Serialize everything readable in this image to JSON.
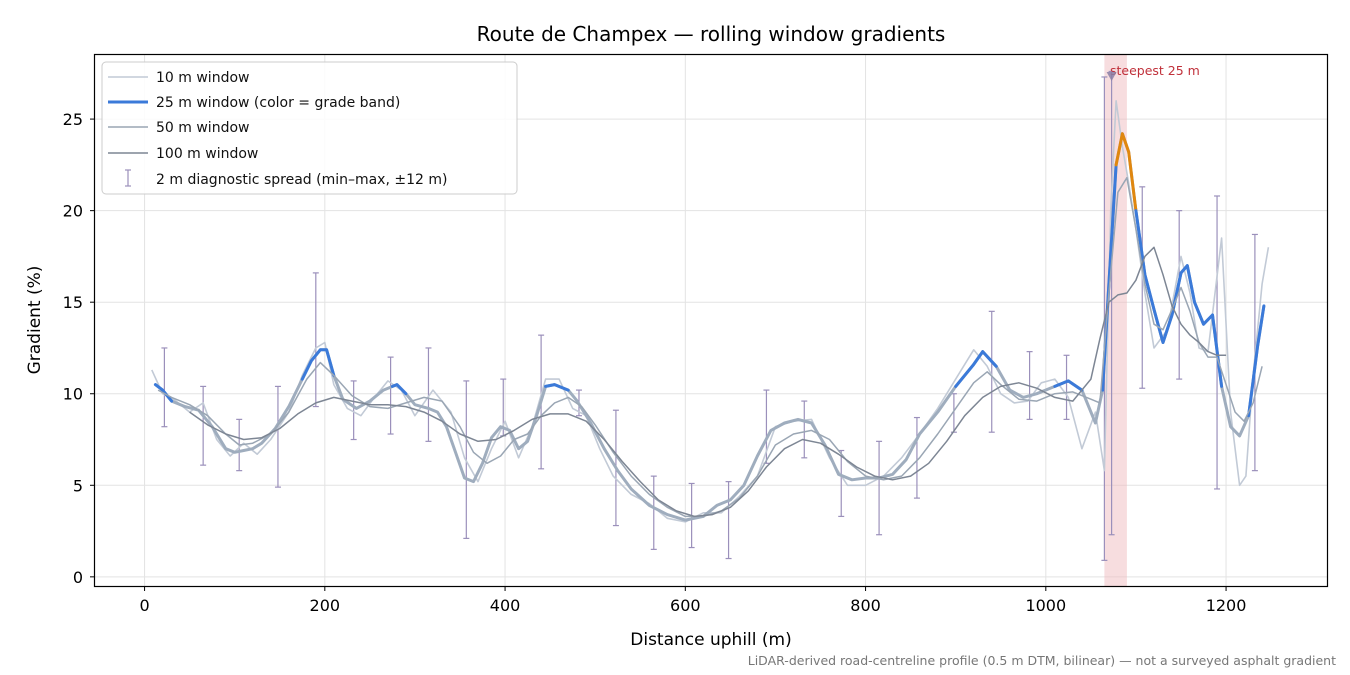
{
  "chart_data": {
    "type": "line",
    "title": "Route de Champex — rolling window gradients",
    "xlabel": "Distance uphill (m)",
    "ylabel": "Gradient (%)",
    "xlim": [
      -55,
      1312
    ],
    "ylim": [
      -0.5,
      28.5
    ],
    "xticks": [
      0,
      200,
      400,
      600,
      800,
      1000,
      1200
    ],
    "yticks": [
      0,
      5,
      10,
      15,
      20,
      25
    ],
    "grid": true,
    "legend_position": "top-left",
    "colors": {
      "w10": "#c2cad6",
      "w25_base": "#9fadbe",
      "w25_band_blue": "#3b7ad9",
      "w25_band_orange": "#e0870f",
      "w50": "#9aa6b4",
      "w100": "#7d8694",
      "errorbar": "#9b90bb",
      "highlight": "#f0bcc0",
      "annotation": "#c0303a",
      "marker": "#8a7fa6"
    },
    "legend": [
      {
        "label": "10 m window",
        "key": "w10"
      },
      {
        "label": "25 m window (color = grade band)",
        "key": "w25"
      },
      {
        "label": "50 m window",
        "key": "w50"
      },
      {
        "label": "100 m window",
        "key": "w100"
      },
      {
        "label": "2 m diagnostic spread (min–max, ±12 m)",
        "key": "spread"
      }
    ],
    "series": [
      {
        "name": "25 m window",
        "x": [
          12,
          20,
          30,
          45,
          60,
          75,
          90,
          100,
          110,
          120,
          130,
          145,
          160,
          175,
          185,
          195,
          202,
          210,
          220,
          235,
          250,
          265,
          280,
          290,
          300,
          315,
          325,
          335,
          345,
          355,
          365,
          375,
          385,
          395,
          405,
          415,
          425,
          435,
          445,
          455,
          470,
          480,
          495,
          510,
          525,
          540,
          560,
          580,
          600,
          620,
          635,
          650,
          665,
          680,
          695,
          710,
          725,
          740,
          755,
          770,
          785,
          800,
          815,
          830,
          845,
          860,
          880,
          900,
          920,
          930,
          945,
          960,
          975,
          990,
          1010,
          1025,
          1040,
          1055,
          1063,
          1070,
          1078,
          1085,
          1092,
          1100,
          1110,
          1120,
          1130,
          1140,
          1150,
          1157,
          1165,
          1175,
          1185,
          1195,
          1205,
          1215,
          1225,
          1235,
          1242
        ],
        "y": [
          10.5,
          10.2,
          9.6,
          9.3,
          9.1,
          8.2,
          7.0,
          6.8,
          6.9,
          7.0,
          7.3,
          8.1,
          9.3,
          10.8,
          11.8,
          12.4,
          12.4,
          11.0,
          9.7,
          9.2,
          9.6,
          10.2,
          10.5,
          10.0,
          9.4,
          9.2,
          9.0,
          8.2,
          6.8,
          5.4,
          5.2,
          6.2,
          7.6,
          8.2,
          8.0,
          7.0,
          7.4,
          8.8,
          10.4,
          10.5,
          10.2,
          9.6,
          8.4,
          7.0,
          5.8,
          4.8,
          3.9,
          3.4,
          3.1,
          3.3,
          3.9,
          4.2,
          5.0,
          6.6,
          8.0,
          8.4,
          8.6,
          8.4,
          7.2,
          5.6,
          5.3,
          5.4,
          5.4,
          5.6,
          6.4,
          7.8,
          9.0,
          10.4,
          11.6,
          12.3,
          11.5,
          10.2,
          9.8,
          10.0,
          10.4,
          10.7,
          10.2,
          8.4,
          10.2,
          16.0,
          22.5,
          24.2,
          23.2,
          20.0,
          16.5,
          14.6,
          12.8,
          14.3,
          16.6,
          17.0,
          15.0,
          13.8,
          14.3,
          10.4,
          8.2,
          7.7,
          8.8,
          12.6,
          14.8
        ]
      },
      {
        "name": "10 m window",
        "x": [
          8,
          20,
          35,
          50,
          65,
          80,
          95,
          110,
          125,
          140,
          160,
          175,
          190,
          200,
          210,
          225,
          240,
          255,
          270,
          285,
          300,
          320,
          340,
          355,
          370,
          385,
          400,
          415,
          430,
          445,
          460,
          475,
          490,
          505,
          520,
          540,
          560,
          580,
          600,
          620,
          640,
          660,
          680,
          700,
          720,
          740,
          760,
          780,
          800,
          820,
          840,
          860,
          880,
          900,
          920,
          935,
          950,
          965,
          980,
          995,
          1010,
          1025,
          1040,
          1055,
          1065,
          1072,
          1078,
          1085,
          1092,
          1100,
          1110,
          1120,
          1135,
          1150,
          1160,
          1170,
          1180,
          1195,
          1205,
          1215,
          1222,
          1230,
          1240,
          1247
        ],
        "y": [
          11.3,
          10.0,
          9.6,
          9.0,
          9.5,
          7.5,
          6.6,
          7.3,
          6.7,
          7.5,
          9.0,
          11.0,
          12.5,
          12.8,
          10.5,
          9.2,
          8.8,
          9.8,
          10.7,
          10.2,
          8.8,
          10.2,
          9.0,
          6.5,
          5.2,
          7.0,
          8.5,
          6.5,
          8.2,
          10.8,
          10.8,
          9.2,
          8.8,
          7.0,
          5.5,
          4.5,
          4.0,
          3.2,
          3.0,
          3.5,
          3.5,
          4.4,
          5.5,
          8.2,
          8.5,
          8.6,
          6.5,
          5.0,
          5.0,
          5.5,
          6.5,
          7.8,
          9.2,
          10.8,
          12.4,
          11.5,
          10.0,
          9.5,
          9.6,
          10.6,
          10.8,
          9.8,
          7.0,
          9.0,
          5.8,
          20.0,
          26.0,
          23.5,
          21.5,
          19.0,
          15.5,
          12.5,
          13.5,
          17.5,
          15.5,
          12.5,
          12.3,
          18.5,
          9.0,
          5.0,
          5.5,
          11.0,
          16.0,
          18.0
        ]
      },
      {
        "name": "50 m window",
        "x": [
          15,
          30,
          50,
          70,
          90,
          105,
          120,
          140,
          160,
          180,
          195,
          210,
          230,
          250,
          270,
          290,
          310,
          330,
          350,
          365,
          380,
          395,
          410,
          425,
          440,
          455,
          470,
          485,
          500,
          520,
          540,
          560,
          580,
          600,
          620,
          640,
          660,
          680,
          700,
          720,
          740,
          760,
          780,
          800,
          820,
          840,
          860,
          880,
          900,
          920,
          935,
          950,
          970,
          990,
          1010,
          1030,
          1050,
          1060,
          1070,
          1080,
          1090,
          1100,
          1110,
          1120,
          1130,
          1140,
          1150,
          1160,
          1170,
          1180,
          1190,
          1200,
          1210,
          1220,
          1230,
          1240
        ],
        "y": [
          10.2,
          9.8,
          9.4,
          8.8,
          7.8,
          7.2,
          7.3,
          7.8,
          9.0,
          10.8,
          11.7,
          11.0,
          9.9,
          9.3,
          9.2,
          9.5,
          9.8,
          9.6,
          8.2,
          6.8,
          6.2,
          6.6,
          7.5,
          7.8,
          8.8,
          9.5,
          9.8,
          9.3,
          8.3,
          6.8,
          5.5,
          4.5,
          3.8,
          3.3,
          3.3,
          3.6,
          4.3,
          5.5,
          7.2,
          7.8,
          8.0,
          7.5,
          6.3,
          5.5,
          5.3,
          5.5,
          6.5,
          7.8,
          9.2,
          10.6,
          11.2,
          10.5,
          9.7,
          9.6,
          10.0,
          10.1,
          9.7,
          9.5,
          15.5,
          21.0,
          21.8,
          19.0,
          16.0,
          13.8,
          13.5,
          14.6,
          15.8,
          14.5,
          12.8,
          12.0,
          12.0,
          10.5,
          9.0,
          8.5,
          9.5,
          11.5
        ]
      },
      {
        "name": "100 m window",
        "x": [
          50,
          70,
          90,
          110,
          130,
          150,
          170,
          190,
          210,
          230,
          250,
          270,
          290,
          310,
          330,
          350,
          370,
          390,
          410,
          430,
          450,
          470,
          490,
          510,
          530,
          550,
          570,
          590,
          610,
          630,
          650,
          670,
          690,
          710,
          730,
          750,
          770,
          790,
          810,
          830,
          850,
          870,
          890,
          910,
          930,
          950,
          970,
          990,
          1010,
          1030,
          1050,
          1060,
          1070,
          1080,
          1090,
          1100,
          1110,
          1120,
          1130,
          1140,
          1150,
          1160,
          1170,
          1180,
          1190,
          1200
        ],
        "y": [
          9.0,
          8.3,
          7.8,
          7.5,
          7.6,
          8.1,
          8.9,
          9.5,
          9.8,
          9.6,
          9.4,
          9.4,
          9.3,
          9.0,
          8.5,
          7.8,
          7.4,
          7.5,
          8.0,
          8.6,
          8.9,
          8.9,
          8.5,
          7.5,
          6.3,
          5.2,
          4.2,
          3.6,
          3.3,
          3.4,
          3.8,
          4.7,
          6.0,
          7.0,
          7.5,
          7.3,
          6.7,
          6.0,
          5.5,
          5.3,
          5.5,
          6.2,
          7.4,
          8.8,
          9.8,
          10.4,
          10.6,
          10.3,
          9.8,
          9.6,
          10.8,
          13.0,
          15.0,
          15.4,
          15.5,
          16.2,
          17.5,
          18.0,
          16.5,
          14.8,
          13.8,
          13.2,
          12.8,
          12.3,
          12.1,
          12.1
        ]
      }
    ],
    "band_segments": [
      {
        "band": "blue",
        "x": [
          12,
          20,
          30
        ]
      },
      {
        "band": "blue",
        "x": [
          175,
          185,
          195,
          202,
          210
        ]
      },
      {
        "band": "blue",
        "x": [
          275,
          280,
          290
        ]
      },
      {
        "band": "blue",
        "x": [
          445,
          455,
          470
        ]
      },
      {
        "band": "blue",
        "x": [
          900,
          920,
          930,
          945
        ]
      },
      {
        "band": "blue",
        "x": [
          1010,
          1025,
          1040
        ]
      },
      {
        "band": "blue",
        "x": [
          1063,
          1070,
          1078
        ]
      },
      {
        "band": "orange",
        "x": [
          1078,
          1085,
          1092,
          1100
        ]
      },
      {
        "band": "blue",
        "x": [
          1100,
          1110,
          1120,
          1130,
          1140,
          1150,
          1157,
          1165,
          1175,
          1185,
          1195
        ]
      },
      {
        "band": "blue",
        "x": [
          1225,
          1235,
          1242
        ]
      }
    ],
    "errorbars": [
      {
        "x": 22,
        "lo": 8.2,
        "hi": 12.5
      },
      {
        "x": 65,
        "lo": 6.1,
        "hi": 10.4
      },
      {
        "x": 105,
        "lo": 5.8,
        "hi": 8.6
      },
      {
        "x": 148,
        "lo": 4.9,
        "hi": 10.4
      },
      {
        "x": 190,
        "lo": 9.3,
        "hi": 16.6
      },
      {
        "x": 232,
        "lo": 7.5,
        "hi": 10.7
      },
      {
        "x": 273,
        "lo": 7.8,
        "hi": 12.0
      },
      {
        "x": 315,
        "lo": 7.4,
        "hi": 12.5
      },
      {
        "x": 357,
        "lo": 2.1,
        "hi": 10.7
      },
      {
        "x": 398,
        "lo": 7.7,
        "hi": 10.8
      },
      {
        "x": 440,
        "lo": 5.9,
        "hi": 13.2
      },
      {
        "x": 482,
        "lo": 8.8,
        "hi": 10.2
      },
      {
        "x": 523,
        "lo": 2.8,
        "hi": 9.1
      },
      {
        "x": 565,
        "lo": 1.5,
        "hi": 5.5
      },
      {
        "x": 607,
        "lo": 1.6,
        "hi": 5.1
      },
      {
        "x": 648,
        "lo": 1.0,
        "hi": 5.2
      },
      {
        "x": 690,
        "lo": 6.2,
        "hi": 10.2
      },
      {
        "x": 732,
        "lo": 6.5,
        "hi": 9.6
      },
      {
        "x": 773,
        "lo": 3.3,
        "hi": 6.9
      },
      {
        "x": 815,
        "lo": 2.3,
        "hi": 7.4
      },
      {
        "x": 857,
        "lo": 4.3,
        "hi": 8.7
      },
      {
        "x": 898,
        "lo": 7.9,
        "hi": 10.0
      },
      {
        "x": 940,
        "lo": 7.9,
        "hi": 14.5
      },
      {
        "x": 982,
        "lo": 8.6,
        "hi": 12.3
      },
      {
        "x": 1023,
        "lo": 8.6,
        "hi": 12.1
      },
      {
        "x": 1065,
        "lo": 0.9,
        "hi": 27.3
      },
      {
        "x": 1073,
        "lo": 2.3,
        "hi": 27.6
      },
      {
        "x": 1107,
        "lo": 10.3,
        "hi": 21.3
      },
      {
        "x": 1148,
        "lo": 10.8,
        "hi": 20.0
      },
      {
        "x": 1190,
        "lo": 4.8,
        "hi": 20.8
      },
      {
        "x": 1232,
        "lo": 5.8,
        "hi": 18.7
      }
    ],
    "highlight_span": [
      1065,
      1090
    ],
    "annotation": {
      "text": "steepest 25 m",
      "x": 1073,
      "y": 27.3
    },
    "footnote": "LiDAR-derived road-centreline profile (0.5 m DTM, bilinear) — not a surveyed asphalt gradient"
  }
}
